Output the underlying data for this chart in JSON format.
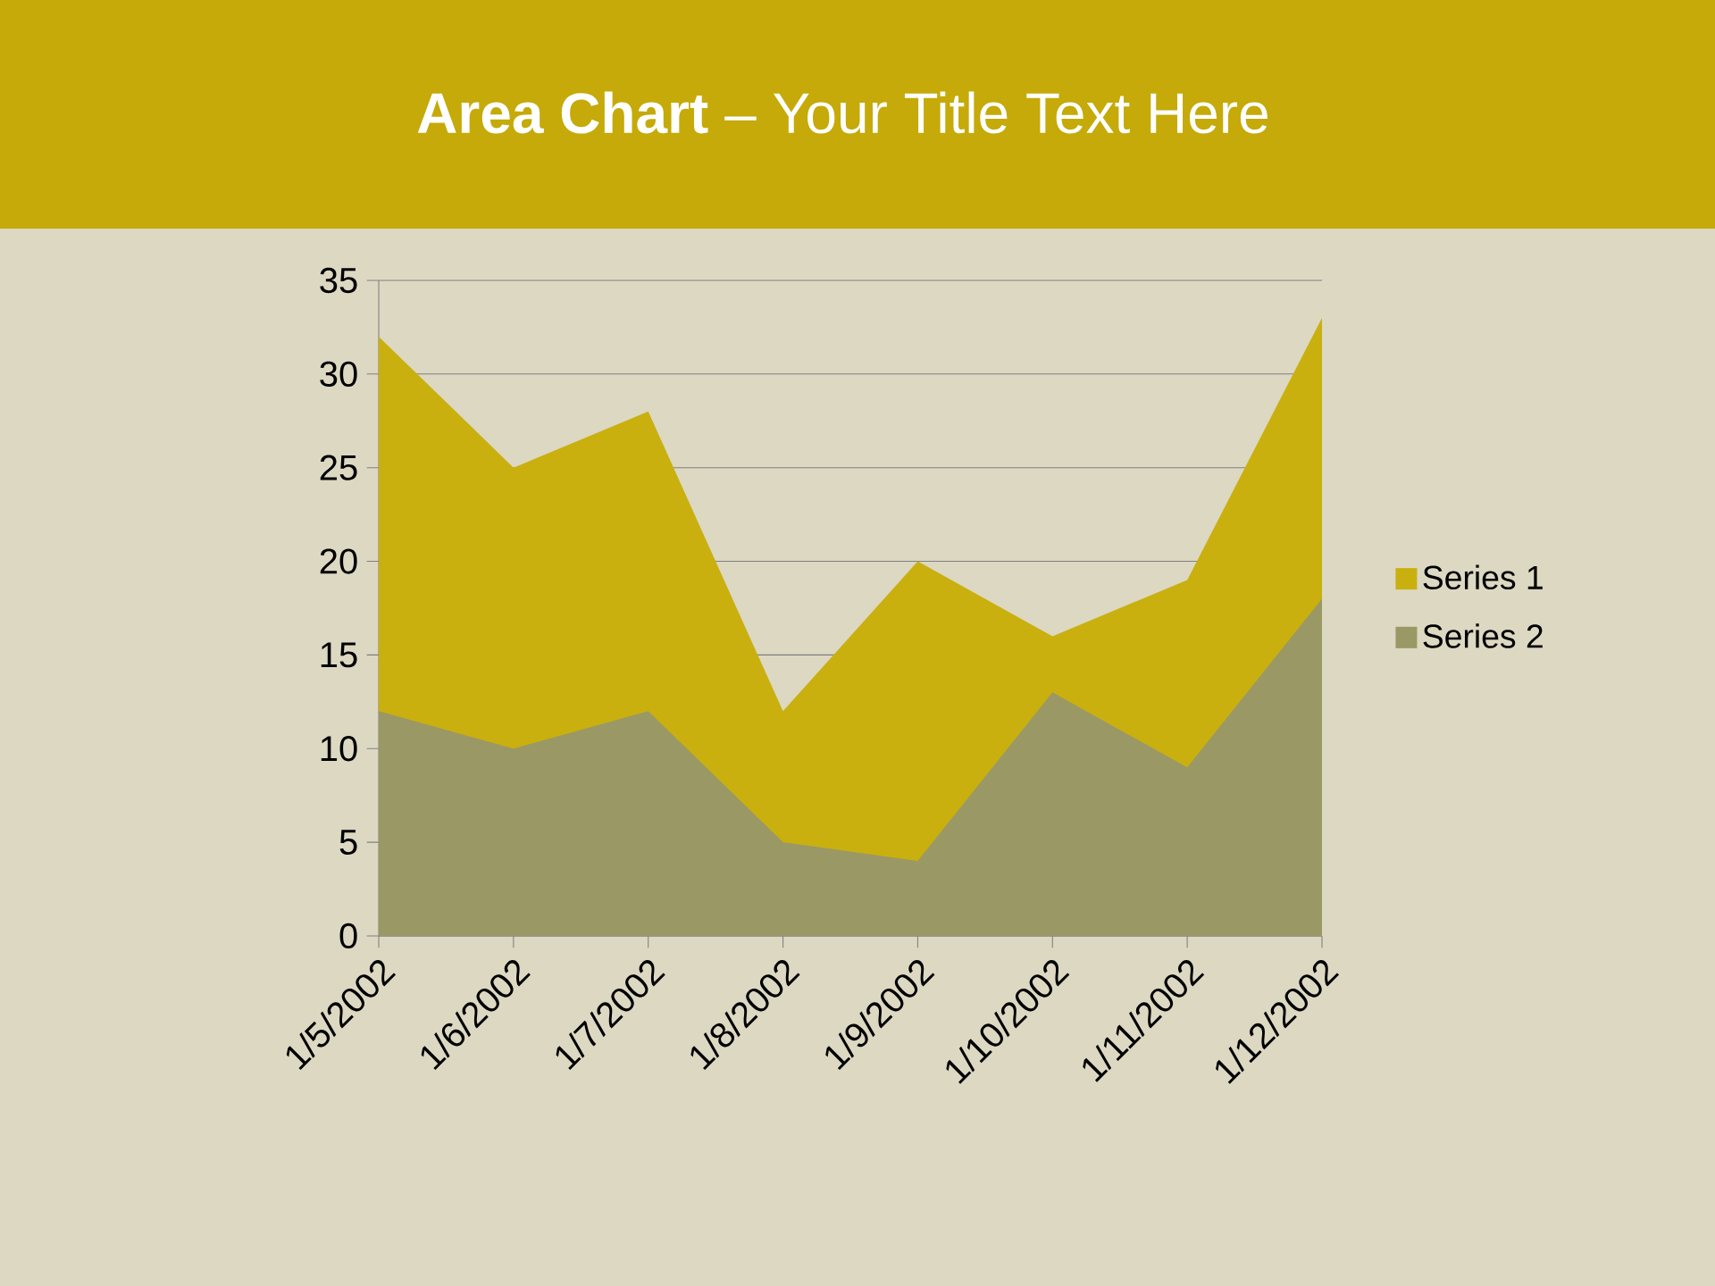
{
  "chart_data": {
    "type": "area",
    "title": "**Area Chart** – Your Title Text Here",
    "categories": [
      "1/5/2002",
      "1/6/2002",
      "1/7/2002",
      "1/8/2002",
      "1/9/2002",
      "1/10/2002",
      "1/11/2002",
      "1/12/2002"
    ],
    "series": [
      {
        "name": "Series 1",
        "color": "#c9b00f",
        "values": [
          32,
          25,
          28,
          12,
          20,
          16,
          19,
          33
        ]
      },
      {
        "name": "Series 2",
        "color": "#9a9865",
        "values": [
          12,
          10,
          12,
          5,
          4,
          13,
          9,
          18
        ]
      }
    ],
    "ylim": [
      0,
      35
    ],
    "yticks": [
      0,
      5,
      10,
      15,
      20,
      25,
      30,
      35
    ],
    "grid": "y",
    "legend": "right"
  }
}
